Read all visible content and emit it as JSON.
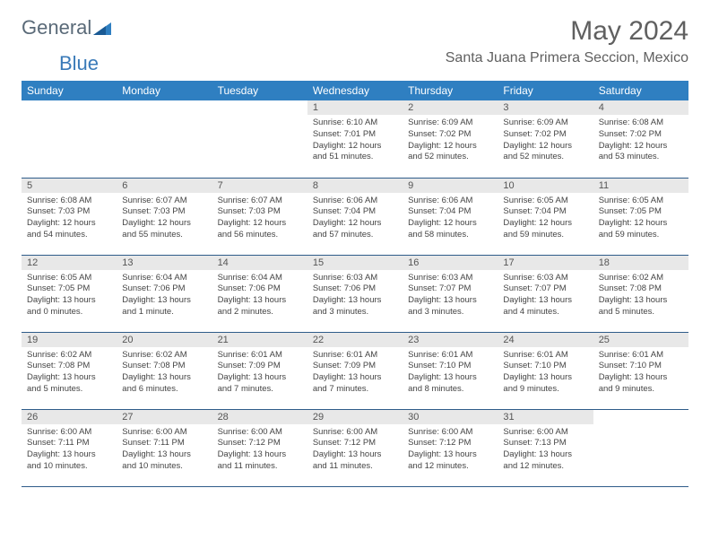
{
  "brand": {
    "part1": "General",
    "part2": "Blue"
  },
  "title": "May 2024",
  "location": "Santa Juana Primera Seccion, Mexico",
  "colors": {
    "header_bg": "#2f7fc1",
    "header_text": "#ffffff",
    "daynum_bg": "#e8e8e8",
    "row_border": "#2f5c8a",
    "brand_gray": "#5a6a78",
    "brand_blue": "#3a7ab8"
  },
  "weekdays": [
    "Sunday",
    "Monday",
    "Tuesday",
    "Wednesday",
    "Thursday",
    "Friday",
    "Saturday"
  ],
  "weeks": [
    [
      null,
      null,
      null,
      {
        "n": "1",
        "sr": "6:10 AM",
        "ss": "7:01 PM",
        "dl": "12 hours and 51 minutes."
      },
      {
        "n": "2",
        "sr": "6:09 AM",
        "ss": "7:02 PM",
        "dl": "12 hours and 52 minutes."
      },
      {
        "n": "3",
        "sr": "6:09 AM",
        "ss": "7:02 PM",
        "dl": "12 hours and 52 minutes."
      },
      {
        "n": "4",
        "sr": "6:08 AM",
        "ss": "7:02 PM",
        "dl": "12 hours and 53 minutes."
      }
    ],
    [
      {
        "n": "5",
        "sr": "6:08 AM",
        "ss": "7:03 PM",
        "dl": "12 hours and 54 minutes."
      },
      {
        "n": "6",
        "sr": "6:07 AM",
        "ss": "7:03 PM",
        "dl": "12 hours and 55 minutes."
      },
      {
        "n": "7",
        "sr": "6:07 AM",
        "ss": "7:03 PM",
        "dl": "12 hours and 56 minutes."
      },
      {
        "n": "8",
        "sr": "6:06 AM",
        "ss": "7:04 PM",
        "dl": "12 hours and 57 minutes."
      },
      {
        "n": "9",
        "sr": "6:06 AM",
        "ss": "7:04 PM",
        "dl": "12 hours and 58 minutes."
      },
      {
        "n": "10",
        "sr": "6:05 AM",
        "ss": "7:04 PM",
        "dl": "12 hours and 59 minutes."
      },
      {
        "n": "11",
        "sr": "6:05 AM",
        "ss": "7:05 PM",
        "dl": "12 hours and 59 minutes."
      }
    ],
    [
      {
        "n": "12",
        "sr": "6:05 AM",
        "ss": "7:05 PM",
        "dl": "13 hours and 0 minutes."
      },
      {
        "n": "13",
        "sr": "6:04 AM",
        "ss": "7:06 PM",
        "dl": "13 hours and 1 minute."
      },
      {
        "n": "14",
        "sr": "6:04 AM",
        "ss": "7:06 PM",
        "dl": "13 hours and 2 minutes."
      },
      {
        "n": "15",
        "sr": "6:03 AM",
        "ss": "7:06 PM",
        "dl": "13 hours and 3 minutes."
      },
      {
        "n": "16",
        "sr": "6:03 AM",
        "ss": "7:07 PM",
        "dl": "13 hours and 3 minutes."
      },
      {
        "n": "17",
        "sr": "6:03 AM",
        "ss": "7:07 PM",
        "dl": "13 hours and 4 minutes."
      },
      {
        "n": "18",
        "sr": "6:02 AM",
        "ss": "7:08 PM",
        "dl": "13 hours and 5 minutes."
      }
    ],
    [
      {
        "n": "19",
        "sr": "6:02 AM",
        "ss": "7:08 PM",
        "dl": "13 hours and 5 minutes."
      },
      {
        "n": "20",
        "sr": "6:02 AM",
        "ss": "7:08 PM",
        "dl": "13 hours and 6 minutes."
      },
      {
        "n": "21",
        "sr": "6:01 AM",
        "ss": "7:09 PM",
        "dl": "13 hours and 7 minutes."
      },
      {
        "n": "22",
        "sr": "6:01 AM",
        "ss": "7:09 PM",
        "dl": "13 hours and 7 minutes."
      },
      {
        "n": "23",
        "sr": "6:01 AM",
        "ss": "7:10 PM",
        "dl": "13 hours and 8 minutes."
      },
      {
        "n": "24",
        "sr": "6:01 AM",
        "ss": "7:10 PM",
        "dl": "13 hours and 9 minutes."
      },
      {
        "n": "25",
        "sr": "6:01 AM",
        "ss": "7:10 PM",
        "dl": "13 hours and 9 minutes."
      }
    ],
    [
      {
        "n": "26",
        "sr": "6:00 AM",
        "ss": "7:11 PM",
        "dl": "13 hours and 10 minutes."
      },
      {
        "n": "27",
        "sr": "6:00 AM",
        "ss": "7:11 PM",
        "dl": "13 hours and 10 minutes."
      },
      {
        "n": "28",
        "sr": "6:00 AM",
        "ss": "7:12 PM",
        "dl": "13 hours and 11 minutes."
      },
      {
        "n": "29",
        "sr": "6:00 AM",
        "ss": "7:12 PM",
        "dl": "13 hours and 11 minutes."
      },
      {
        "n": "30",
        "sr": "6:00 AM",
        "ss": "7:12 PM",
        "dl": "13 hours and 12 minutes."
      },
      {
        "n": "31",
        "sr": "6:00 AM",
        "ss": "7:13 PM",
        "dl": "13 hours and 12 minutes."
      },
      null
    ]
  ],
  "labels": {
    "sunrise": "Sunrise:",
    "sunset": "Sunset:",
    "daylight": "Daylight:"
  }
}
